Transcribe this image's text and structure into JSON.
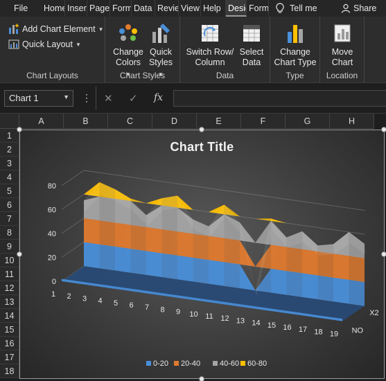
{
  "ribbon_tabs": {
    "file": "File",
    "home": "Home",
    "insert": "Insert",
    "page": "Page",
    "formulas": "Formulas",
    "data": "Data",
    "review": "Review",
    "view": "View",
    "help": "Help",
    "design": "Design",
    "format": "Format",
    "tell_me": "Tell me",
    "share": "Share"
  },
  "ribbon": {
    "add_chart_element": "Add Chart Element",
    "quick_layout": "Quick Layout",
    "change_colors_1": "Change",
    "change_colors_2": "Colors",
    "quick_styles_1": "Quick",
    "quick_styles_2": "Styles",
    "switch_row_1": "Switch Row/",
    "switch_row_2": "Column",
    "select_data_1": "Select",
    "select_data_2": "Data",
    "change_type_1": "Change",
    "change_type_2": "Chart Type",
    "move_chart_1": "Move",
    "move_chart_2": "Chart",
    "groups": {
      "chart_layouts": "Chart Layouts",
      "chart_styles": "Chart Styles",
      "data": "Data",
      "type": "Type",
      "location": "Location"
    }
  },
  "formula_bar": {
    "name_box": "Chart 1",
    "fx": "fx",
    "value": ""
  },
  "columns": [
    "A",
    "B",
    "C",
    "D",
    "E",
    "F",
    "G",
    "H"
  ],
  "rows": [
    "1",
    "2",
    "3",
    "4",
    "5",
    "6",
    "7",
    "8",
    "9",
    "10",
    "11",
    "12",
    "13",
    "14",
    "15",
    "16",
    "17",
    "18"
  ],
  "colors": {
    "band_0_20": "#4a8fd9",
    "band_20_40": "#e07a2e",
    "band_40_60": "#a5a5a5",
    "band_60_80": "#ffc000"
  },
  "chart_data": {
    "type": "surface",
    "title": "Chart Title",
    "x_categories": [
      "1",
      "2",
      "3",
      "4",
      "5",
      "6",
      "7",
      "8",
      "9",
      "10",
      "11",
      "12",
      "13",
      "14",
      "15",
      "16",
      "17",
      "18",
      "19"
    ],
    "series_axis": [
      "NO",
      "X2"
    ],
    "y_ticks": [
      "0",
      "20",
      "40",
      "60",
      "80"
    ],
    "ylim": [
      0,
      80
    ],
    "series": [
      {
        "name": "X2",
        "values": [
          55,
          72,
          68,
          62,
          50,
          66,
          70,
          52,
          48,
          68,
          55,
          0,
          62,
          48,
          55,
          45,
          48,
          60,
          52
        ]
      },
      {
        "name": "NO",
        "values": [
          2,
          2,
          2,
          2,
          2,
          2,
          2,
          2,
          2,
          2,
          2,
          2,
          2,
          2,
          2,
          2,
          2,
          2,
          2
        ]
      }
    ],
    "legend": [
      "0-20",
      "20-40",
      "40-60",
      "60-80"
    ],
    "legend_position": "bottom"
  }
}
